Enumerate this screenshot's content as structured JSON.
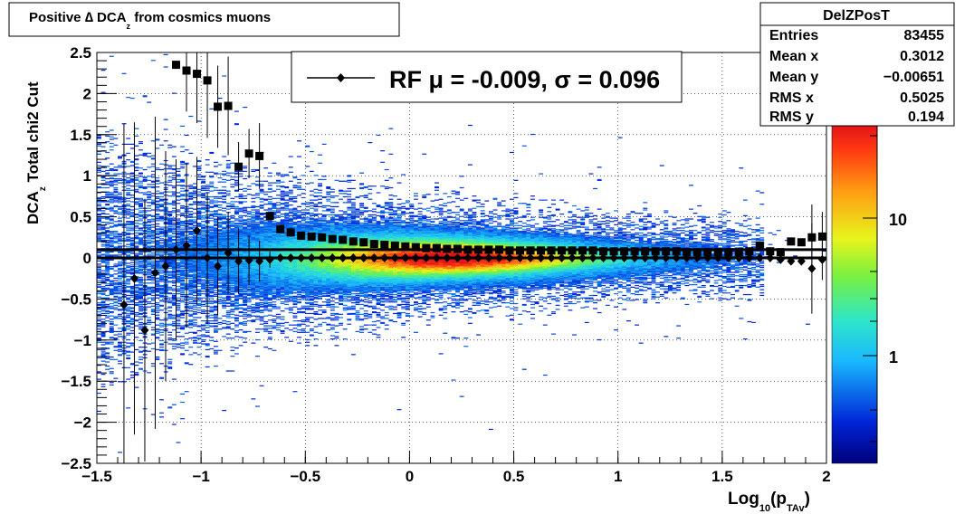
{
  "title": {
    "main": "Positive ∆ DCA",
    "sub": "z",
    "rest": " from cosmics muons"
  },
  "stats": {
    "name": "DelZPosT",
    "rows": [
      {
        "label": "Entries",
        "value": "83455"
      },
      {
        "label": "Mean x",
        "value": "0.3012"
      },
      {
        "label": "Mean y",
        "value": "−0.00651"
      },
      {
        "label": "RMS x",
        "value": "0.5025"
      },
      {
        "label": "RMS y",
        "value": "0.194"
      }
    ]
  },
  "legend": {
    "text": "RF μ = -0.009, σ =   0.096"
  },
  "colorbar": {
    "ticks": [
      "10",
      "1"
    ]
  },
  "chart_data": {
    "type": "heatmap",
    "title": "Positive ∆ DCA_z from cosmics muons",
    "xlabel": "Log",
    "xlabel_sub1": "10",
    "xlabel_mid": "(p",
    "xlabel_sub2": "TAv",
    "xlabel_end": ")",
    "ylabel": "DCA",
    "ylabel_sub": "z",
    "ylabel_rest": "  Total chi2 Cut",
    "xlim": [
      -1.5,
      2
    ],
    "ylim": [
      -2.5,
      2.5
    ],
    "colorscale": "log",
    "grid": true,
    "xticks": [
      {
        "v": -1.5,
        "t": "−1.5"
      },
      {
        "v": -1,
        "t": "−1"
      },
      {
        "v": -0.5,
        "t": "−0.5"
      },
      {
        "v": 0,
        "t": "0"
      },
      {
        "v": 0.5,
        "t": "0.5"
      },
      {
        "v": 1,
        "t": "1"
      },
      {
        "v": 1.5,
        "t": "1.5"
      },
      {
        "v": 2,
        "t": "2"
      }
    ],
    "yticks": [
      {
        "v": 2.5,
        "t": "2.5"
      },
      {
        "v": 2,
        "t": "2"
      },
      {
        "v": 1.5,
        "t": "1.5"
      },
      {
        "v": 1,
        "t": "1"
      },
      {
        "v": 0.5,
        "t": "0.5"
      },
      {
        "v": 0,
        "t": "0"
      },
      {
        "v": -0.5,
        "t": "−0.5"
      },
      {
        "v": -1,
        "t": "−1"
      },
      {
        "v": -1.5,
        "t": "−1.5"
      },
      {
        "v": -2,
        "t": "−2"
      },
      {
        "v": -2.5,
        "t": "−2.5"
      }
    ],
    "hlines": [
      0.1,
      0.0
    ],
    "series": [
      {
        "name": "RF",
        "marker": "diamond",
        "points": [
          [
            -1.37,
            -0.57,
            2.2
          ],
          [
            -1.32,
            -0.25,
            1.9
          ],
          [
            -1.27,
            -0.88,
            1.6
          ],
          [
            -1.22,
            -0.18,
            1.9
          ],
          [
            -1.17,
            -0.1,
            1.4
          ],
          [
            -1.12,
            0.1,
            1.1
          ],
          [
            -1.07,
            0.15,
            1.0
          ],
          [
            -1.02,
            0.33,
            0.9
          ],
          [
            -0.97,
            0.0,
            0.8
          ],
          [
            -0.92,
            -0.1,
            0.6
          ],
          [
            -0.87,
            0.06,
            0.5
          ],
          [
            -0.82,
            -0.04,
            0.4
          ],
          [
            -0.77,
            -0.03,
            0.3
          ],
          [
            -0.72,
            -0.04,
            0.25
          ],
          [
            -0.67,
            -0.02,
            0.1
          ],
          [
            -0.62,
            0.0
          ],
          [
            -0.57,
            0.0
          ],
          [
            -0.52,
            0.0
          ],
          [
            -0.47,
            0.0
          ],
          [
            -0.42,
            0.0
          ],
          [
            -0.37,
            0.0
          ],
          [
            -0.32,
            0.0
          ],
          [
            -0.27,
            0.0
          ],
          [
            -0.22,
            0.0
          ],
          [
            -0.17,
            0.0
          ],
          [
            -0.12,
            0.0
          ],
          [
            -0.07,
            0.0
          ],
          [
            -0.02,
            0.0
          ],
          [
            0.03,
            0.0
          ],
          [
            0.08,
            0.0
          ],
          [
            0.13,
            0.0
          ],
          [
            0.18,
            0.0
          ],
          [
            0.23,
            0.0
          ],
          [
            0.28,
            0.0
          ],
          [
            0.33,
            0.0
          ],
          [
            0.38,
            0.0
          ],
          [
            0.43,
            0.0
          ],
          [
            0.48,
            0.0
          ],
          [
            0.53,
            0.0
          ],
          [
            0.58,
            0.0
          ],
          [
            0.63,
            0.0
          ],
          [
            0.68,
            0.0
          ],
          [
            0.73,
            0.0
          ],
          [
            0.78,
            0.0
          ],
          [
            0.83,
            0.0
          ],
          [
            0.88,
            0.0
          ],
          [
            0.93,
            0.0
          ],
          [
            0.98,
            0.0
          ],
          [
            1.03,
            0.0
          ],
          [
            1.08,
            0.0
          ],
          [
            1.13,
            0.0
          ],
          [
            1.18,
            0.0
          ],
          [
            1.23,
            0.0
          ],
          [
            1.28,
            0.0
          ],
          [
            1.33,
            0.0
          ],
          [
            1.38,
            0.0
          ],
          [
            1.43,
            0.0
          ],
          [
            1.48,
            0.0
          ],
          [
            1.53,
            0.0
          ],
          [
            1.58,
            0.0
          ],
          [
            1.63,
            0.0
          ],
          [
            1.68,
            0.0
          ],
          [
            1.73,
            0.0
          ],
          [
            1.78,
            -0.02
          ],
          [
            1.83,
            -0.04
          ],
          [
            1.88,
            -0.04
          ],
          [
            1.93,
            -0.13,
            0.55
          ],
          [
            1.98,
            -0.02,
            0.25
          ]
        ]
      },
      {
        "name": "",
        "marker": "square",
        "points": [
          [
            -1.12,
            2.35
          ],
          [
            -1.07,
            2.28,
            0.5
          ],
          [
            -1.02,
            2.24,
            0.6
          ],
          [
            -0.97,
            2.16,
            0.7
          ],
          [
            -0.92,
            1.84,
            0.5
          ],
          [
            -0.87,
            1.85,
            0.6
          ],
          [
            -0.82,
            1.11,
            0.3
          ],
          [
            -0.77,
            1.27,
            0.3
          ],
          [
            -0.72,
            1.24,
            0.4
          ],
          [
            -0.67,
            0.51
          ],
          [
            -0.62,
            0.35
          ],
          [
            -0.57,
            0.31
          ],
          [
            -0.52,
            0.27
          ],
          [
            -0.47,
            0.26
          ],
          [
            -0.42,
            0.25
          ],
          [
            -0.37,
            0.23
          ],
          [
            -0.32,
            0.22
          ],
          [
            -0.27,
            0.2
          ],
          [
            -0.22,
            0.19
          ],
          [
            -0.17,
            0.17
          ],
          [
            -0.12,
            0.16
          ],
          [
            -0.07,
            0.15
          ],
          [
            -0.02,
            0.14
          ],
          [
            0.03,
            0.13
          ],
          [
            0.08,
            0.12
          ],
          [
            0.13,
            0.12
          ],
          [
            0.18,
            0.11
          ],
          [
            0.23,
            0.11
          ],
          [
            0.28,
            0.1
          ],
          [
            0.33,
            0.1
          ],
          [
            0.38,
            0.1
          ],
          [
            0.43,
            0.1
          ],
          [
            0.48,
            0.09
          ],
          [
            0.53,
            0.09
          ],
          [
            0.58,
            0.09
          ],
          [
            0.63,
            0.09
          ],
          [
            0.68,
            0.09
          ],
          [
            0.73,
            0.09
          ],
          [
            0.78,
            0.09
          ],
          [
            0.83,
            0.09
          ],
          [
            0.88,
            0.09
          ],
          [
            0.93,
            0.08
          ],
          [
            0.98,
            0.08
          ],
          [
            1.03,
            0.08
          ],
          [
            1.08,
            0.08
          ],
          [
            1.13,
            0.08
          ],
          [
            1.18,
            0.08
          ],
          [
            1.23,
            0.08
          ],
          [
            1.28,
            0.08
          ],
          [
            1.33,
            0.07
          ],
          [
            1.38,
            0.07
          ],
          [
            1.43,
            0.07
          ],
          [
            1.48,
            0.07
          ],
          [
            1.53,
            0.07
          ],
          [
            1.58,
            0.07
          ],
          [
            1.63,
            0.08
          ],
          [
            1.68,
            0.15
          ],
          [
            1.73,
            0.08
          ],
          [
            1.78,
            0.07
          ],
          [
            1.83,
            0.2
          ],
          [
            1.88,
            0.19
          ],
          [
            1.93,
            0.25,
            0.4
          ],
          [
            1.98,
            0.26,
            0.3
          ]
        ]
      }
    ]
  }
}
